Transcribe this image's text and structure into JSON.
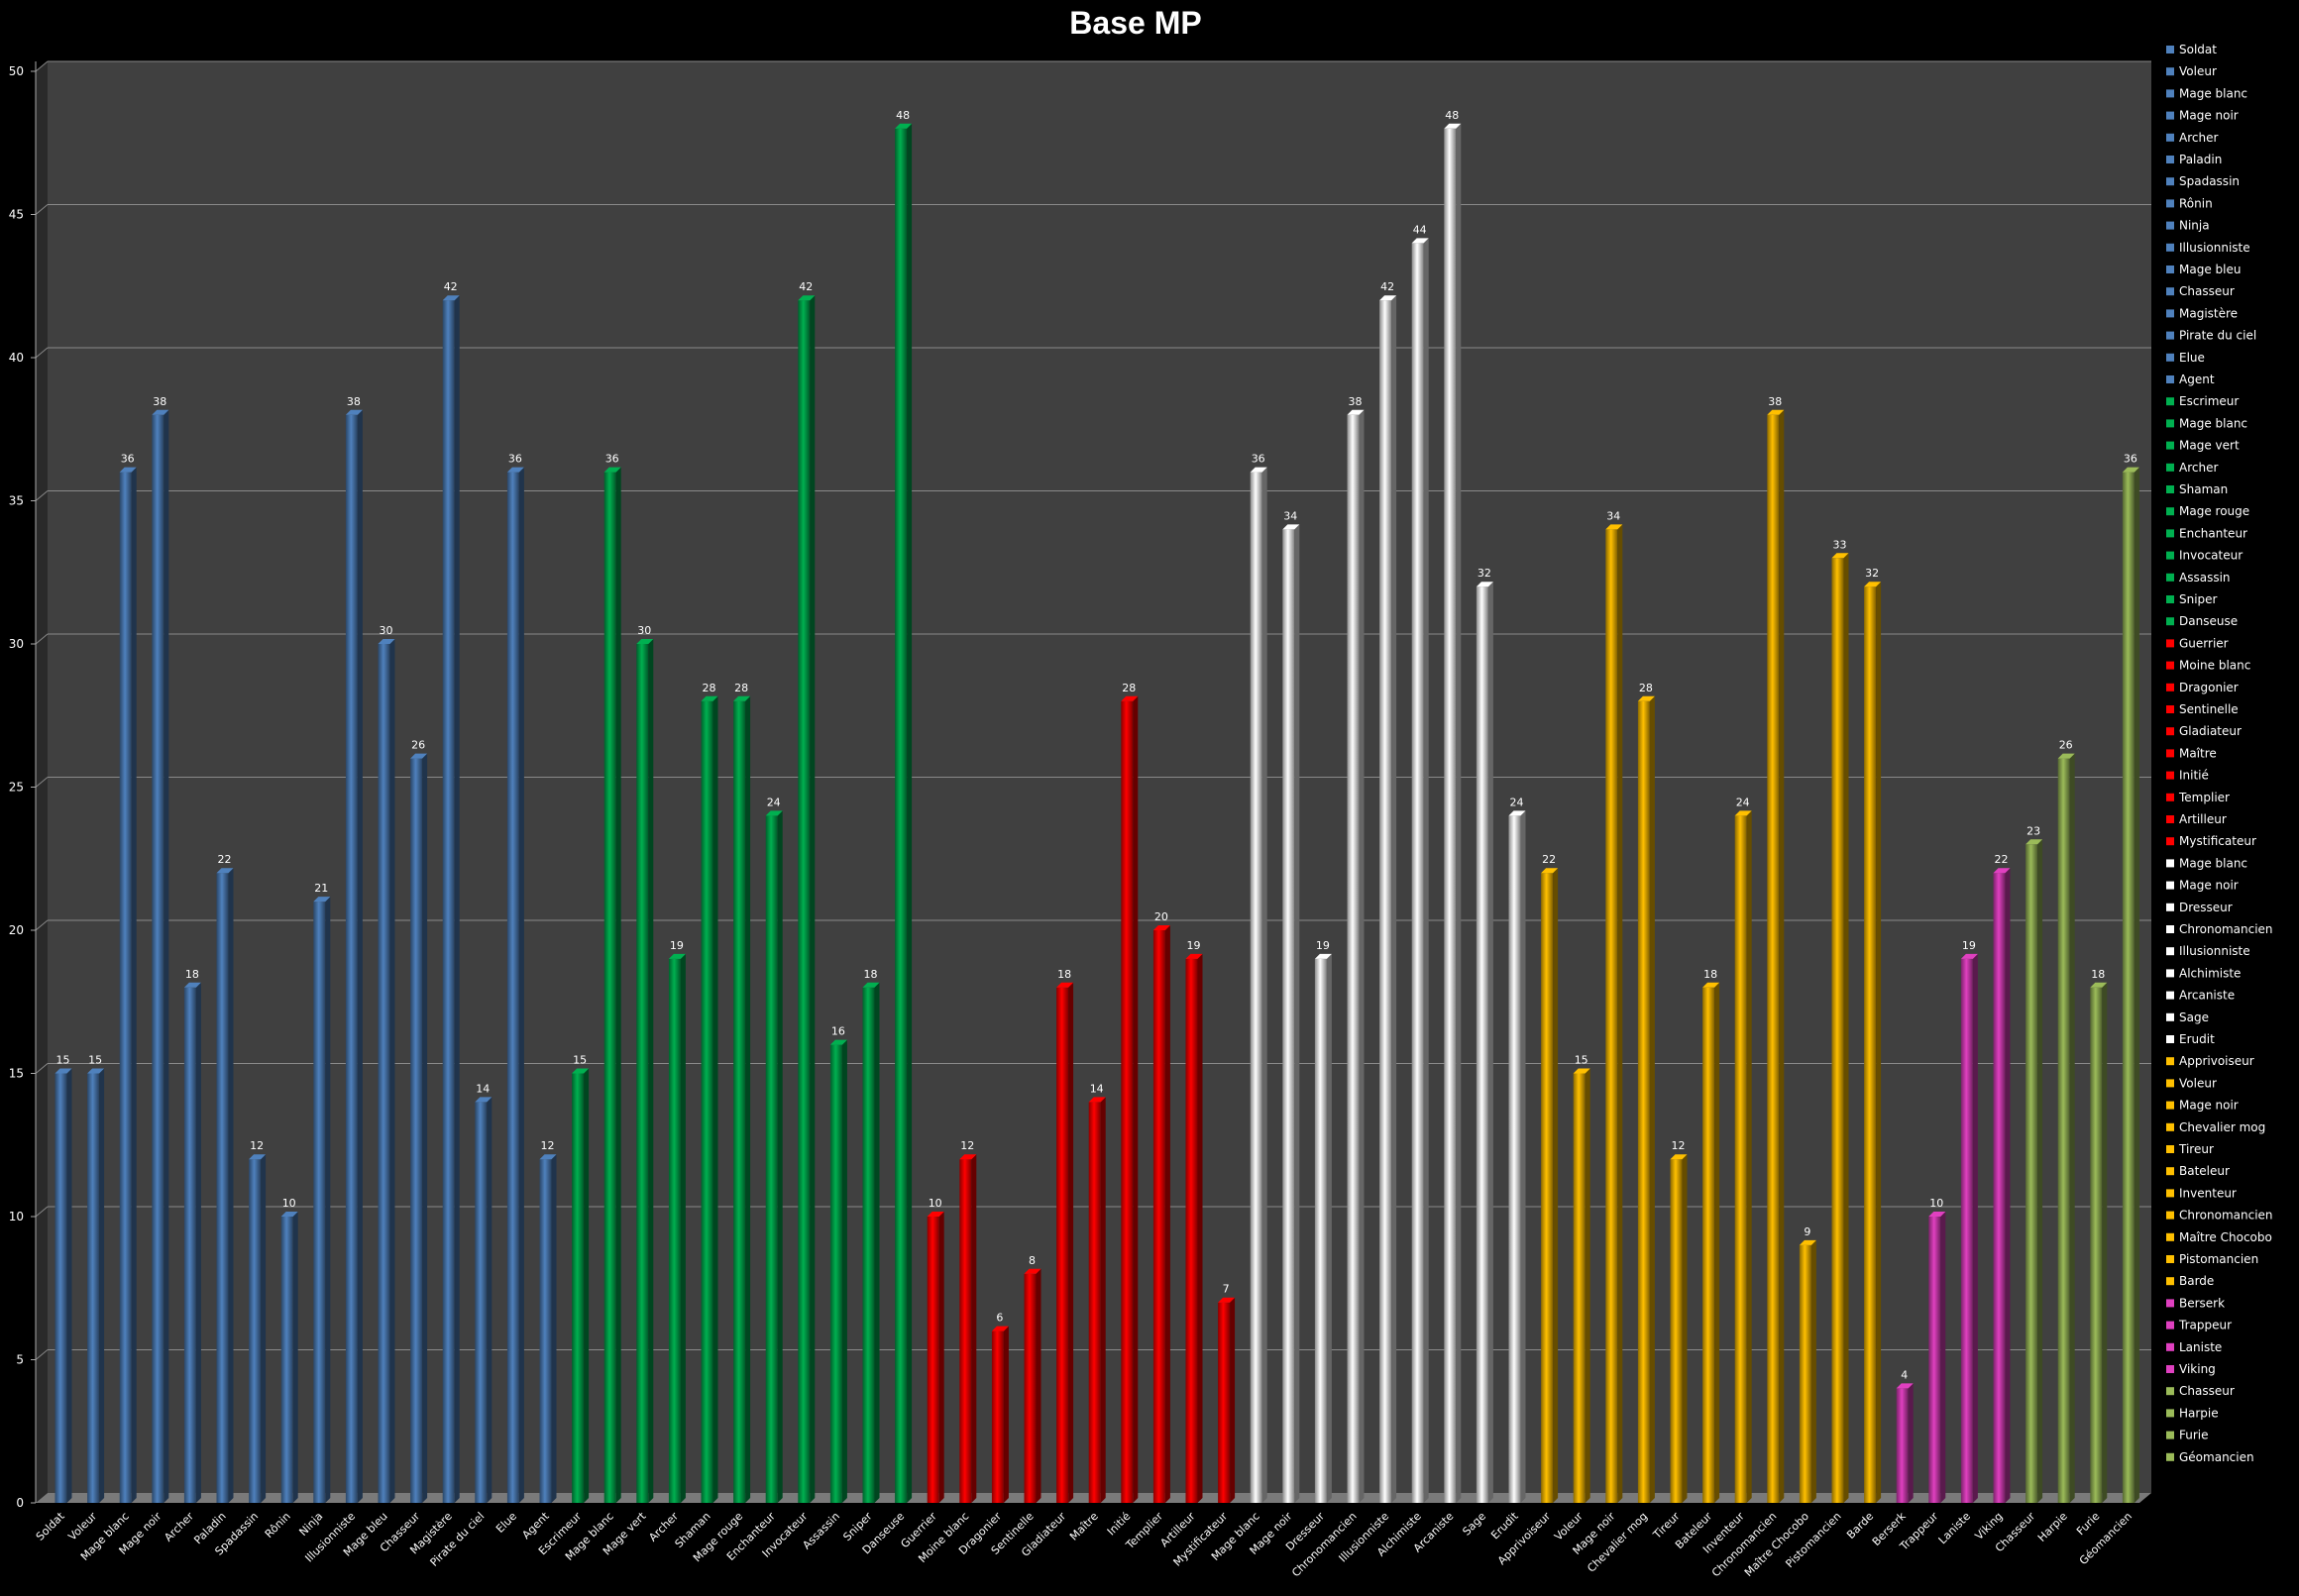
{
  "chart_data": {
    "type": "bar",
    "title": "Base MP",
    "xlabel": "",
    "ylabel": "",
    "ylim": [
      0,
      50
    ],
    "yticks": [
      0,
      5,
      10,
      15,
      20,
      25,
      30,
      35,
      40,
      45,
      50
    ],
    "grid": true,
    "legend_position": "right",
    "colors": {
      "blue": "#4f81bd",
      "green": "#00b050",
      "red": "#ff0000",
      "white": "#ffffff",
      "gold": "#ffc000",
      "magenta": "#e040c0",
      "olive": "#9bbb59"
    },
    "categories": [
      "Soldat",
      "Voleur",
      "Mage blanc",
      "Mage noir",
      "Archer",
      "Paladin",
      "Spadassin",
      "Rônin",
      "Ninja",
      "Illusionniste",
      "Mage bleu",
      "Chasseur",
      "Magistère",
      "Pirate du ciel",
      "Elue",
      "Agent",
      "Escrimeur",
      "Mage blanc",
      "Mage vert",
      "Archer",
      "Shaman",
      "Mage rouge",
      "Enchanteur",
      "Invocateur",
      "Assassin",
      "Sniper",
      "Danseuse",
      "Guerrier",
      "Moine blanc",
      "Dragonier",
      "Sentinelle",
      "Gladiateur",
      "Maître",
      "Initié",
      "Templier",
      "Artilleur",
      "Mystificateur",
      "Mage blanc",
      "Mage noir",
      "Dresseur",
      "Chronomancien",
      "Illusionniste",
      "Alchimiste",
      "Arcaniste",
      "Sage",
      "Erudit",
      "Apprivoiseur",
      "Voleur",
      "Mage noir",
      "Chevalier mog",
      "Tireur",
      "Bateleur",
      "Inventeur",
      "Chronomancien",
      "Maître Chocobo",
      "Pistomancien",
      "Barde",
      "Berserk",
      "Trappeur",
      "Laniste",
      "Viking",
      "Chasseur",
      "Harpie",
      "Furie",
      "Géomancien"
    ],
    "values": [
      15,
      15,
      36,
      38,
      18,
      22,
      12,
      10,
      21,
      38,
      30,
      26,
      42,
      14,
      36,
      12,
      15,
      36,
      30,
      19,
      28,
      28,
      24,
      42,
      16,
      18,
      48,
      10,
      12,
      6,
      8,
      18,
      14,
      28,
      20,
      19,
      7,
      36,
      34,
      19,
      38,
      42,
      44,
      48,
      32,
      24,
      22,
      15,
      34,
      28,
      12,
      18,
      24,
      38,
      9,
      33,
      32,
      4,
      10,
      19,
      22,
      23,
      26,
      18,
      36
    ],
    "bar_colors": [
      "blue",
      "blue",
      "blue",
      "blue",
      "blue",
      "blue",
      "blue",
      "blue",
      "blue",
      "blue",
      "blue",
      "blue",
      "blue",
      "blue",
      "blue",
      "blue",
      "green",
      "green",
      "green",
      "green",
      "green",
      "green",
      "green",
      "green",
      "green",
      "green",
      "green",
      "red",
      "red",
      "red",
      "red",
      "red",
      "red",
      "red",
      "red",
      "red",
      "red",
      "white",
      "white",
      "white",
      "white",
      "white",
      "white",
      "white",
      "white",
      "white",
      "gold",
      "gold",
      "gold",
      "gold",
      "gold",
      "gold",
      "gold",
      "gold",
      "gold",
      "gold",
      "gold",
      "magenta",
      "magenta",
      "magenta",
      "magenta",
      "olive",
      "olive",
      "olive",
      "olive"
    ]
  }
}
